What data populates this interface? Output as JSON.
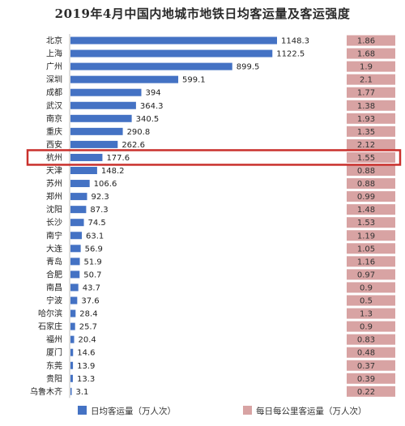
{
  "chart_data": {
    "type": "bar",
    "title": "2019年4月中国内地城市地铁日均客运量及客运强度",
    "categories": [
      "北京",
      "上海",
      "广州",
      "深圳",
      "成都",
      "武汉",
      "南京",
      "重庆",
      "西安",
      "杭州",
      "天津",
      "苏州",
      "郑州",
      "沈阳",
      "长沙",
      "南宁",
      "大连",
      "青岛",
      "合肥",
      "南昌",
      "宁波",
      "哈尔滨",
      "石家庄",
      "福州",
      "厦门",
      "东莞",
      "贵阳",
      "乌鲁木齐"
    ],
    "series": [
      {
        "name": "日均客运量（万人次）",
        "color": "#4472c4",
        "values": [
          1148.3,
          1122.5,
          899.5,
          599.1,
          394,
          364.3,
          340.5,
          290.8,
          262.6,
          177.6,
          148.2,
          106.6,
          92.3,
          87.3,
          74.5,
          63.1,
          56.9,
          51.9,
          50.7,
          43.7,
          37.6,
          28.4,
          25.7,
          20.4,
          14.6,
          13.9,
          13.3,
          3.1
        ]
      },
      {
        "name": "每日每公里客运量（万人次）",
        "color": "#d8a3a3",
        "values": [
          "1.86",
          "1.68",
          "1.9",
          "2.1",
          "1.77",
          "1.38",
          "1.93",
          "1.35",
          "2.12",
          "1.55",
          "0.88",
          "0.88",
          "0.99",
          "1.48",
          "1.53",
          "1.19",
          "1.05",
          "1.16",
          "0.97",
          "0.9",
          "0.5",
          "1.3",
          "0.9",
          "0.83",
          "0.48",
          "0.37",
          "0.39",
          "0.22"
        ]
      }
    ],
    "highlight": {
      "category": "杭州",
      "color": "#c9302c"
    },
    "grid": false,
    "legend_position": "bottom"
  }
}
